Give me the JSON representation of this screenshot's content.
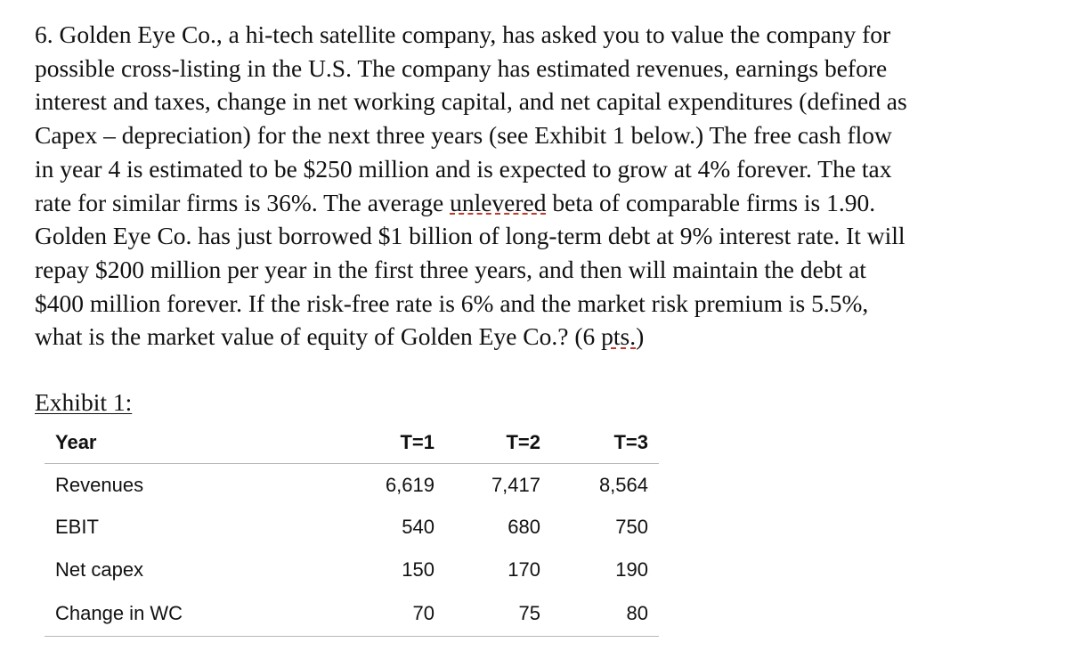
{
  "question": {
    "lines": [
      "6. Golden Eye Co., a hi-tech satellite company, has asked you to value the company for",
      "possible cross-listing in the U.S. The company has estimated revenues, earnings before",
      "interest and taxes, change in net working capital, and net capital expenditures (defined as",
      "Capex – depreciation) for the next three years (see Exhibit 1 below.) The free cash flow",
      "in year 4 is estimated to be $250 million and is expected to grow at 4% forever. The tax",
      "rate for similar firms is 36%. The average ",
      "unlevered",
      " beta of comparable firms is 1.90.",
      "Golden Eye Co. has just borrowed $1 billion of long-term debt at 9% interest rate. It will",
      "repay $200 million per year in the first three years, and then will maintain the debt at",
      "$400 million forever. If the risk-free rate is 6% and the market risk premium is 5.5%,",
      "what is the market value of equity of Golden Eye Co.? (6 ",
      "pts.",
      ")"
    ]
  },
  "exhibit": {
    "label": "Exhibit 1:",
    "headers": [
      "Year",
      "T=1",
      "T=2",
      "T=3"
    ],
    "rows": [
      [
        "Revenues",
        "6,619",
        "7,417",
        "8,564"
      ],
      [
        "EBIT",
        "540",
        "680",
        "750"
      ],
      [
        "Net capex",
        "150",
        "170",
        "190"
      ],
      [
        "Change in WC",
        "70",
        "75",
        "80"
      ]
    ]
  },
  "colors": {
    "text": "#111111",
    "rule": "#b8b8b8",
    "spellcheck_underline": "#c0392b"
  }
}
